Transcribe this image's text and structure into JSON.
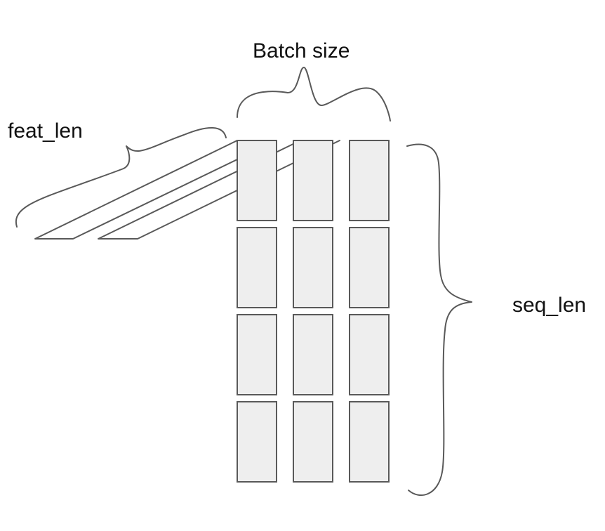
{
  "labels": {
    "batch_size": "Batch size",
    "feat_len": "feat_len",
    "seq_len": "seq_len"
  },
  "grid": {
    "columns": 3,
    "rows": 4,
    "cell_fill": "#eeeeee",
    "stroke_color": "#595959"
  },
  "feature_slices": 3
}
